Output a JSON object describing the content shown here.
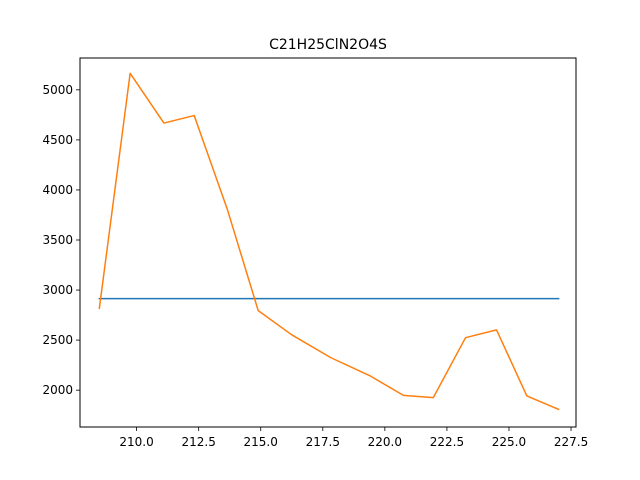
{
  "chart_data": {
    "type": "line",
    "title": "C21H25ClN2O4S",
    "xlabel": "",
    "ylabel": "",
    "xlim": [
      207.72,
      227.7
    ],
    "ylim": [
      1632,
      5318
    ],
    "grid": false,
    "x_ticks": [
      210.0,
      212.5,
      215.0,
      217.5,
      220.0,
      222.5,
      225.0,
      227.5
    ],
    "x_tick_labels": [
      "210.0",
      "212.5",
      "215.0",
      "217.5",
      "220.0",
      "222.5",
      "225.0",
      "227.5"
    ],
    "y_ticks": [
      2000,
      2500,
      3000,
      3500,
      4000,
      4500,
      5000
    ],
    "y_tick_labels": [
      "2000",
      "2500",
      "3000",
      "3500",
      "4000",
      "4500",
      "5000"
    ],
    "series": [
      {
        "color": "#1f77b4",
        "x": [
          208.5,
          227.0
        ],
        "y": [
          2914,
          2914
        ]
      },
      {
        "color": "#ff7f0e",
        "x": [
          208.5,
          209.74,
          211.1,
          212.32,
          213.65,
          214.9,
          216.25,
          217.82,
          219.39,
          220.75,
          221.95,
          223.25,
          224.5,
          225.72,
          227.0
        ],
        "y": [
          2818,
          5165,
          4668,
          4743,
          3810,
          2794,
          2553,
          2325,
          2145,
          1948,
          1925,
          2524,
          2602,
          1942,
          1808
        ]
      }
    ]
  }
}
